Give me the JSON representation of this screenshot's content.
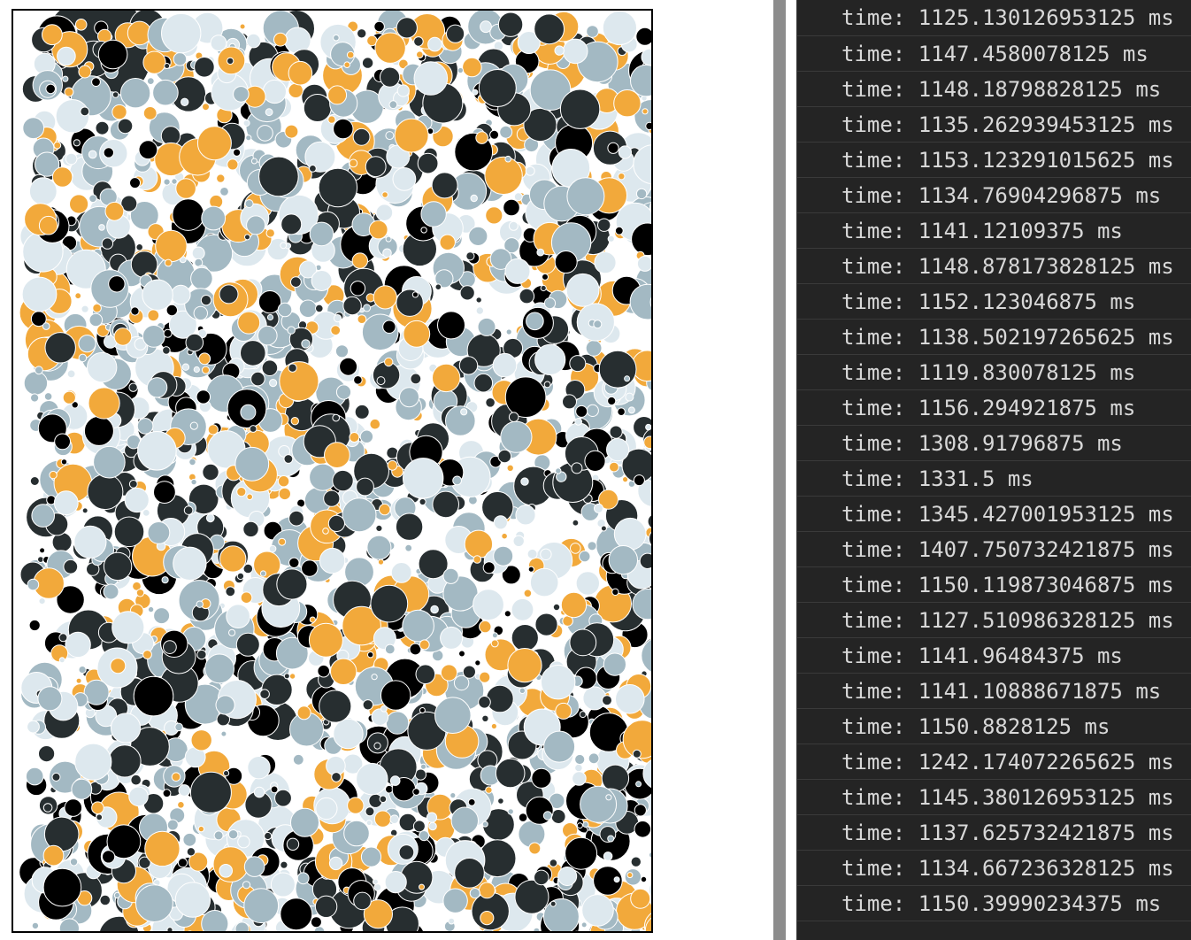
{
  "canvas": {
    "palette": [
      "#272e30",
      "#000000",
      "#a3b9c3",
      "#dde8ee",
      "#f2a93b"
    ]
  },
  "console": {
    "entries": [
      "time: 1125.130126953125 ms",
      "time: 1147.4580078125 ms",
      "time: 1148.1879882812​5 ms",
      "time: 1135.262939453125 ms",
      "time: 1153.123291015625 ms",
      "time: 1134.76904296875 ms",
      "time: 1141.12109375 ms",
      "time: 1148.878173828125 ms",
      "time: 1152.123046875 ms",
      "time: 1138.502197265625 ms",
      "time: 1119.830078125 ms",
      "time: 1156.294921875 ms",
      "time: 1308.91796875 ms",
      "time: 1331.5 ms",
      "time: 1345.427001953125 ms",
      "time: 1407.750732421875 ms",
      "time: 1150.11987304687​5 ms",
      "time: 1127.510986328125 ms",
      "time: 1141.96484375 ms",
      "time: 1141.1088867187​5 ms",
      "time: 1150.8828125 ms",
      "time: 1242.174072265625 ms",
      "time: 1145.380126953125 ms",
      "time: 1137.625732421875 ms",
      "time: 1134.667236328125 ms",
      "time: 1150.39990234375 ms"
    ]
  }
}
